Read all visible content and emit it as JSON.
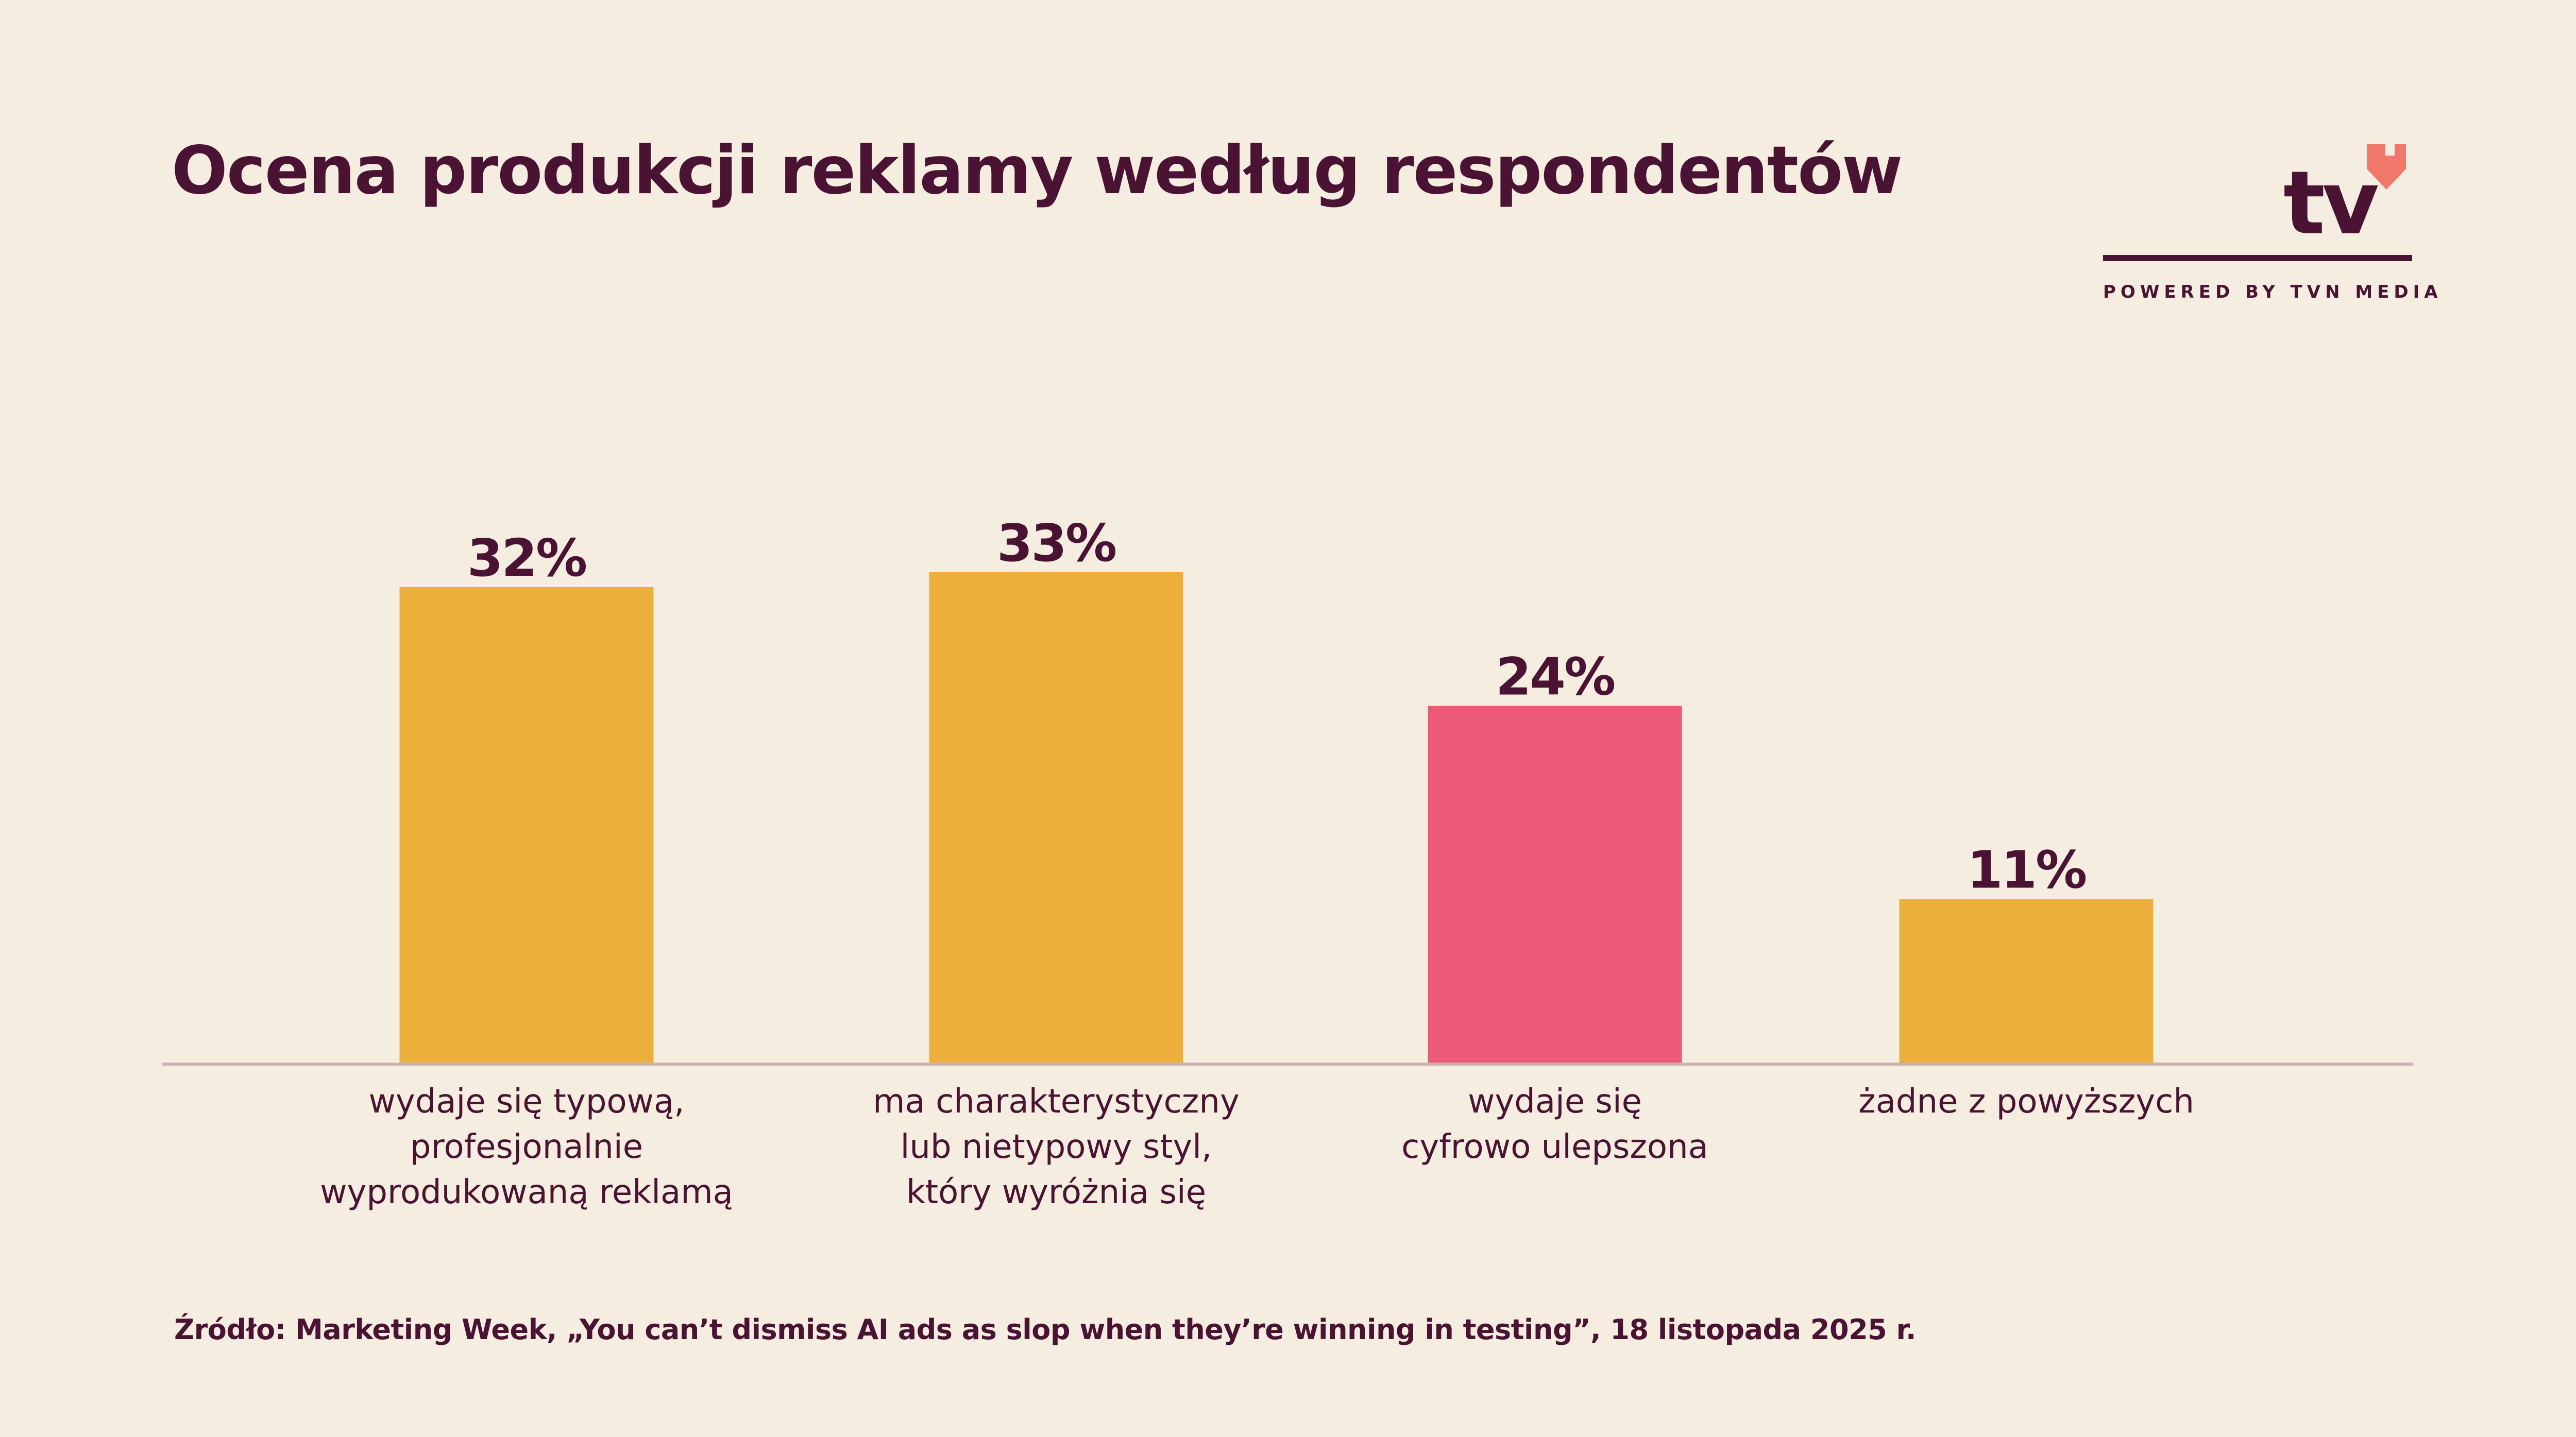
{
  "title": "Ocena produkcji reklamy według respondentów",
  "logo": {
    "text": "tv",
    "tagline": "POWERED BY TVN MEDIA",
    "heart_color": "#f0786b"
  },
  "source": "Źródło: Marketing Week, „You can’t dismiss AI ads as slop when they’re winning in testing”, 18 listopada 2025 r.",
  "colors": {
    "background": "#f5ede0",
    "text": "#4a1233",
    "bar_default": "#ecaf3b",
    "bar_highlight": "#ec5a77",
    "axis": "#c9b4b1"
  },
  "chart_data": {
    "type": "bar",
    "categories": [
      [
        "wydaje się typową,",
        "profesjonalnie",
        "wyprodukowaną reklamą"
      ],
      [
        "ma charakterystyczny",
        "lub nietypowy styl,",
        "który wyróżnia się"
      ],
      [
        "wydaje się",
        "cyfrowo ulepszona"
      ],
      [
        "żadne z powyższych"
      ]
    ],
    "values": [
      32,
      33,
      24,
      11
    ],
    "value_labels": [
      "32%",
      "33%",
      "24%",
      "11%"
    ],
    "highlight_index": 2,
    "ylim": [
      0,
      33
    ],
    "grid": false,
    "legend": "none",
    "xlabel": "",
    "ylabel": ""
  }
}
